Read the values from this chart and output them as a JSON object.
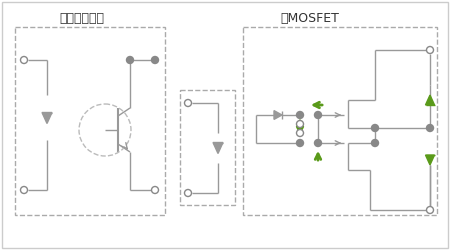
{
  "title_left": "フォトカプラ",
  "title_right": "光MOSFET",
  "line_color": "#999999",
  "green_color": "#5a9a1a",
  "dot_color": "#888888",
  "lw": 1.0
}
